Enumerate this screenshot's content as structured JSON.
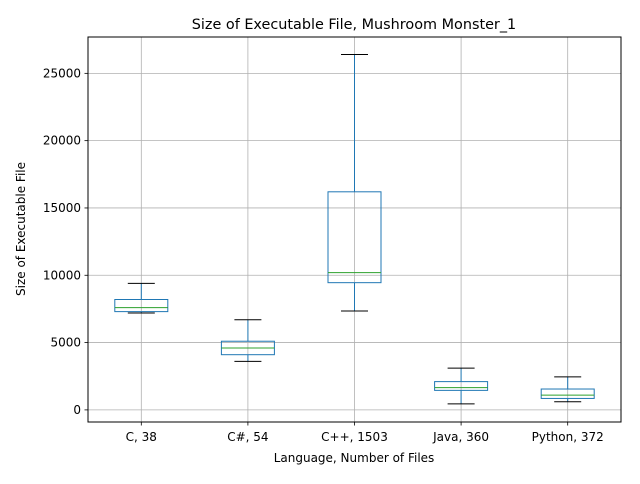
{
  "chart_data": {
    "type": "box",
    "title": "Size of Executable File, Mushroom Monster_1",
    "xlabel": "Language, Number of Files",
    "ylabel": "Size of Executable File",
    "ylim": [
      -900,
      27700
    ],
    "yticks": [
      0,
      5000,
      10000,
      15000,
      20000,
      25000
    ],
    "grid": true,
    "categories": [
      "C, 38",
      "C#, 54",
      "C++, 1503",
      "Java, 360",
      "Python, 372"
    ],
    "boxes": [
      {
        "whisker_low": 7200,
        "q1": 7300,
        "median": 7600,
        "q3": 8200,
        "whisker_high": 9400
      },
      {
        "whisker_low": 3600,
        "q1": 4100,
        "median": 4600,
        "q3": 5100,
        "whisker_high": 6700
      },
      {
        "whisker_low": 7350,
        "q1": 9450,
        "median": 10200,
        "q3": 16200,
        "whisker_high": 26400
      },
      {
        "whisker_low": 450,
        "q1": 1450,
        "median": 1650,
        "q3": 2100,
        "whisker_high": 3100
      },
      {
        "whisker_low": 600,
        "q1": 850,
        "median": 1100,
        "q3": 1550,
        "whisker_high": 2450
      }
    ],
    "colors": {
      "box": "#1f77b4",
      "median": "#2ca02c",
      "whisker_cap": "#000000",
      "grid": "#b0b0b0",
      "axes": "#000000"
    }
  }
}
